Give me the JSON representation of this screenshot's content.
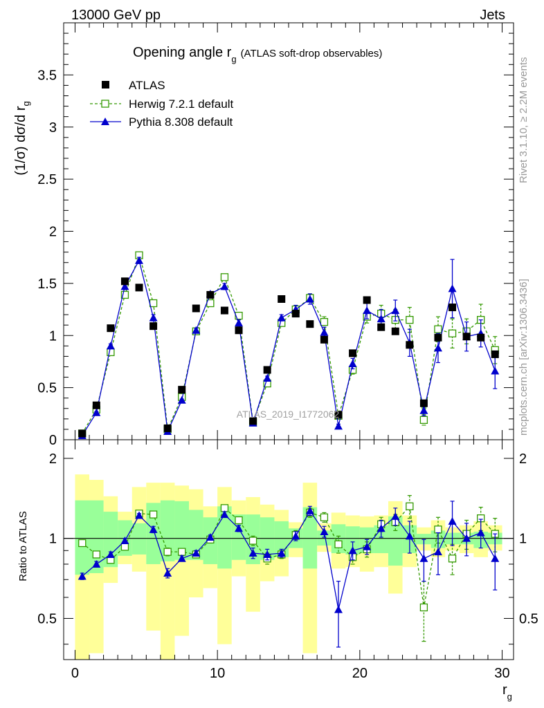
{
  "header": {
    "left": "13000 GeV pp",
    "right": "Jets"
  },
  "side": {
    "rivet": "Rivet 3.1.10, ≥ 2.2M events",
    "mcplots": "mcplots.cern.ch [arXiv:1306.3436]"
  },
  "watermark": "ATLAS_2019_I1772062",
  "chart_data": {
    "type": "scatter",
    "title_main": "Opening angle r",
    "title_sub": "g",
    "title_note": "(ATLAS soft-drop observables)",
    "ylabel": "(1/σ) dσ/d r",
    "ylabel_sub": "g",
    "xlabel": "r",
    "xlabel_sub": "g",
    "ratio_ylabel": "Ratio to ATLAS",
    "xlim": [
      -0.8,
      30.8
    ],
    "ylim": [
      0,
      4
    ],
    "ratio_ylim": [
      0.35,
      2.35
    ],
    "x_ticks": [
      0,
      10,
      20,
      30
    ],
    "x_tick_labels": [
      "0",
      "10",
      "20",
      "30"
    ],
    "y_ticks": [
      0,
      0.5,
      1,
      1.5,
      2,
      2.5,
      3,
      3.5
    ],
    "y_tick_labels": [
      "0",
      "0.5",
      "1",
      "1.5",
      "2",
      "2.5",
      "3",
      "3.5"
    ],
    "ratio_ticks": [
      0.5,
      1,
      2
    ],
    "ratio_tick_labels": [
      "0.5",
      "1",
      "2"
    ],
    "x": [
      0.5,
      1.5,
      2.5,
      3.5,
      4.5,
      5.5,
      6.5,
      7.5,
      8.5,
      9.5,
      10.5,
      11.5,
      12.5,
      13.5,
      14.5,
      15.5,
      16.5,
      17.5,
      18.5,
      19.5,
      20.5,
      21.5,
      22.5,
      23.5,
      24.5,
      25.5,
      26.5,
      27.5,
      28.5,
      29.5
    ],
    "series": [
      {
        "name": "ATLAS",
        "color": "#000000",
        "marker": "square",
        "values": [
          0.06,
          0.33,
          1.07,
          1.52,
          1.46,
          1.09,
          0.11,
          0.48,
          1.26,
          1.39,
          1.24,
          1.05,
          0.18,
          0.67,
          1.35,
          1.21,
          1.11,
          0.96,
          0.24,
          0.83,
          1.34,
          1.08,
          1.04,
          0.91,
          0.35,
          0.98,
          1.27,
          0.99,
          0.98,
          0.82
        ]
      },
      {
        "name": "Herwig 7.2.1 default",
        "color": "#339900",
        "marker": "open-square",
        "dashed": true,
        "values": [
          0.06,
          0.29,
          0.84,
          1.39,
          1.77,
          1.31,
          0.1,
          0.41,
          1.04,
          1.31,
          1.56,
          1.19,
          0.17,
          0.54,
          1.12,
          1.25,
          1.36,
          1.13,
          0.23,
          0.67,
          1.18,
          1.21,
          1.15,
          1.15,
          0.19,
          1.06,
          1.02,
          1.04,
          1.15,
          0.86
        ],
        "errors": [
          0.005,
          0.01,
          0.02,
          0.03,
          0.03,
          0.03,
          0.005,
          0.01,
          0.02,
          0.02,
          0.03,
          0.03,
          0.01,
          0.02,
          0.03,
          0.03,
          0.04,
          0.05,
          0.02,
          0.04,
          0.06,
          0.08,
          0.1,
          0.12,
          0.05,
          0.12,
          0.14,
          0.12,
          0.15,
          0.13
        ]
      },
      {
        "name": "Pythia 8.308 default",
        "color": "#0000cc",
        "marker": "triangle",
        "values": [
          0.04,
          0.26,
          0.9,
          1.47,
          1.72,
          1.17,
          0.08,
          0.38,
          1.05,
          1.4,
          1.47,
          1.12,
          0.16,
          0.59,
          1.17,
          1.25,
          1.35,
          1.03,
          0.13,
          0.73,
          1.24,
          1.16,
          1.24,
          0.93,
          0.28,
          0.88,
          1.45,
          0.99,
          1.02,
          0.66
        ],
        "errors": [
          0.005,
          0.01,
          0.02,
          0.03,
          0.03,
          0.03,
          0.005,
          0.01,
          0.02,
          0.02,
          0.03,
          0.03,
          0.01,
          0.02,
          0.03,
          0.04,
          0.05,
          0.05,
          0.02,
          0.05,
          0.08,
          0.09,
          0.1,
          0.13,
          0.05,
          0.14,
          0.28,
          0.14,
          0.13,
          0.17
        ]
      }
    ],
    "ratio": {
      "band_inner_low": [
        0.73,
        0.74,
        0.78,
        0.86,
        0.87,
        0.8,
        0.82,
        0.83,
        0.83,
        0.8,
        0.77,
        0.83,
        0.8,
        0.83,
        0.85,
        0.92,
        0.77,
        0.94,
        0.88,
        0.87,
        0.88,
        0.88,
        0.79,
        0.88,
        0.95,
        0.92,
        0.95,
        0.95,
        0.92,
        0.95
      ],
      "band_inner_high": [
        1.39,
        1.39,
        1.26,
        1.17,
        1.14,
        1.36,
        1.39,
        1.38,
        1.28,
        1.2,
        1.32,
        1.23,
        1.23,
        1.2,
        1.16,
        1.09,
        1.31,
        1.07,
        1.13,
        1.11,
        1.1,
        1.12,
        1.21,
        1.12,
        1.04,
        1.07,
        1.05,
        1.05,
        1.06,
        1.05
      ],
      "band_outer_low": [
        0.35,
        0.37,
        0.68,
        0.8,
        0.75,
        0.45,
        0.34,
        0.43,
        0.6,
        0.65,
        0.4,
        0.72,
        0.53,
        0.69,
        0.72,
        0.85,
        0.37,
        0.89,
        0.77,
        0.78,
        0.75,
        0.78,
        0.62,
        0.78,
        0.9,
        0.85,
        0.9,
        0.88,
        0.85,
        0.9
      ],
      "band_outer_high": [
        1.74,
        1.66,
        1.44,
        1.26,
        1.56,
        1.62,
        1.62,
        1.58,
        1.53,
        1.32,
        1.56,
        1.39,
        1.43,
        1.34,
        1.28,
        1.15,
        1.62,
        1.14,
        1.25,
        1.22,
        1.21,
        1.22,
        1.38,
        1.22,
        1.1,
        1.17,
        1.1,
        1.12,
        1.16,
        1.12
      ],
      "herwig": [
        0.96,
        0.87,
        0.83,
        0.93,
        1.24,
        1.23,
        0.89,
        0.89,
        0.87,
        0.99,
        1.3,
        1.17,
        0.98,
        0.84,
        0.87,
        1.03,
        1.25,
        1.2,
        0.95,
        0.85,
        0.91,
        1.13,
        1.15,
        1.32,
        0.55,
        1.08,
        0.84,
        1.04,
        1.19,
        1.04
      ],
      "herwig_errors": [
        0.02,
        0.02,
        0.02,
        0.02,
        0.02,
        0.03,
        0.03,
        0.02,
        0.02,
        0.02,
        0.03,
        0.03,
        0.04,
        0.04,
        0.03,
        0.04,
        0.05,
        0.05,
        0.07,
        0.05,
        0.06,
        0.07,
        0.08,
        0.13,
        0.14,
        0.12,
        0.11,
        0.13,
        0.12,
        0.15
      ],
      "pythia": [
        0.72,
        0.8,
        0.87,
        0.98,
        1.22,
        1.08,
        0.74,
        0.84,
        0.88,
        1.01,
        1.23,
        1.09,
        0.88,
        0.87,
        0.88,
        1.02,
        1.27,
        1.06,
        0.54,
        0.9,
        0.93,
        1.09,
        1.21,
        1.02,
        0.84,
        0.89,
        1.16,
        1.0,
        1.05,
        0.84
      ],
      "pythia_errors": [
        0.02,
        0.02,
        0.02,
        0.02,
        0.02,
        0.03,
        0.03,
        0.02,
        0.02,
        0.02,
        0.03,
        0.03,
        0.04,
        0.04,
        0.03,
        0.04,
        0.05,
        0.05,
        0.15,
        0.07,
        0.06,
        0.08,
        0.09,
        0.14,
        0.15,
        0.16,
        0.22,
        0.14,
        0.13,
        0.2
      ]
    }
  }
}
